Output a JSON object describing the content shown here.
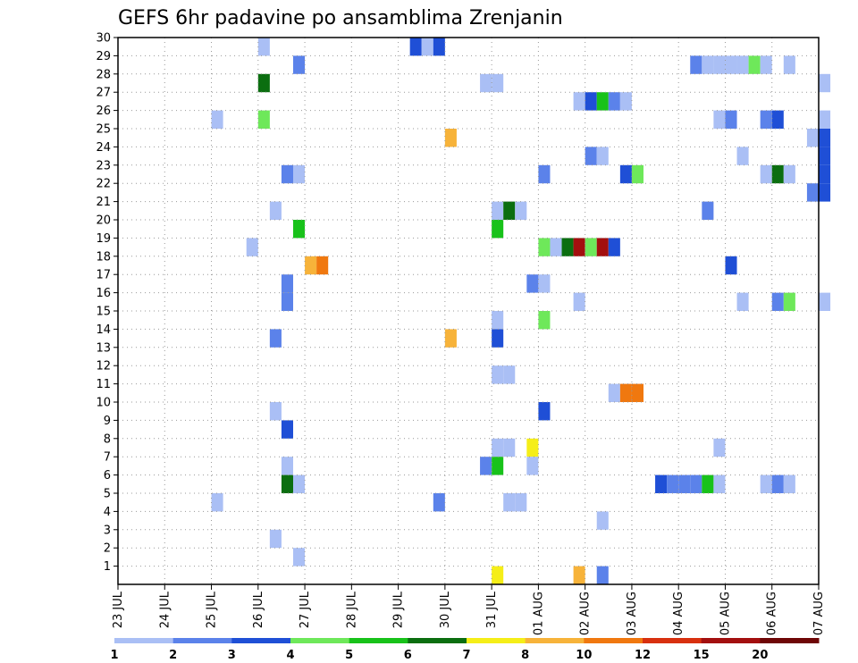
{
  "chart_data": {
    "type": "heatmap",
    "title": "GEFS 6hr padavine po ansamblima Zrenjanin",
    "xlabel": "",
    "ylabel": "",
    "x_tick_labels": [
      "23 JUL",
      "24 JUL",
      "25 JUL",
      "26 JUL",
      "27 JUL",
      "28 JUL",
      "29 JUL",
      "30 JUL",
      "31 JUL",
      "01 AUG",
      "02 AUG",
      "03 AUG",
      "04 AUG",
      "05 AUG",
      "06 AUG",
      "07 AUG"
    ],
    "x_range_steps": [
      0,
      60
    ],
    "steps_per_day": 4,
    "y_tick_labels": [
      "1",
      "2",
      "3",
      "4",
      "5",
      "6",
      "7",
      "8",
      "9",
      "10",
      "11",
      "12",
      "13",
      "14",
      "15",
      "16",
      "17",
      "18",
      "19",
      "20",
      "21",
      "22",
      "23",
      "24",
      "25",
      "26",
      "27",
      "28",
      "29",
      "30"
    ],
    "y_range": [
      0,
      30
    ],
    "grid": true,
    "colorbar": {
      "labels": [
        "1",
        "2",
        "3",
        "4",
        "5",
        "6",
        "7",
        "8",
        "10",
        "12",
        "15",
        "20"
      ],
      "colors": [
        "#aabff5",
        "#5b82ea",
        "#1f4fd6",
        "#6ee85a",
        "#18c21a",
        "#0b6e10",
        "#f5ee18",
        "#f7b33a",
        "#f0780f",
        "#d8300f",
        "#a30f0f",
        "#6e0606"
      ]
    },
    "cells": [
      [
        12,
        30,
        0
      ],
      [
        25,
        30,
        2
      ],
      [
        26,
        30,
        0
      ],
      [
        27,
        30,
        2
      ],
      [
        15,
        29,
        1
      ],
      [
        49,
        29,
        1
      ],
      [
        50,
        29,
        0
      ],
      [
        51,
        29,
        0
      ],
      [
        52,
        29,
        0
      ],
      [
        53,
        29,
        0
      ],
      [
        54,
        29,
        3
      ],
      [
        55,
        29,
        0
      ],
      [
        57,
        29,
        0
      ],
      [
        12,
        28,
        5
      ],
      [
        31,
        28,
        0
      ],
      [
        32,
        28,
        0
      ],
      [
        60,
        28,
        0
      ],
      [
        39,
        27,
        0
      ],
      [
        40,
        27,
        2
      ],
      [
        41,
        27,
        4
      ],
      [
        42,
        27,
        1
      ],
      [
        43,
        27,
        0
      ],
      [
        8,
        26,
        0
      ],
      [
        12,
        26,
        3
      ],
      [
        51,
        26,
        0
      ],
      [
        52,
        26,
        1
      ],
      [
        55,
        26,
        1
      ],
      [
        56,
        26,
        2
      ],
      [
        60,
        26,
        0
      ],
      [
        28,
        25,
        7
      ],
      [
        59,
        25,
        0
      ],
      [
        60,
        25,
        2
      ],
      [
        40,
        24,
        1
      ],
      [
        41,
        24,
        0
      ],
      [
        53,
        24,
        0
      ],
      [
        60,
        24,
        2
      ],
      [
        14,
        23,
        1
      ],
      [
        15,
        23,
        0
      ],
      [
        36,
        23,
        1
      ],
      [
        43,
        23,
        2
      ],
      [
        44,
        23,
        3
      ],
      [
        55,
        23,
        0
      ],
      [
        56,
        23,
        5
      ],
      [
        57,
        23,
        0
      ],
      [
        60,
        23,
        2
      ],
      [
        59,
        22,
        1
      ],
      [
        60,
        22,
        2
      ],
      [
        13,
        21,
        0
      ],
      [
        32,
        21,
        0
      ],
      [
        33,
        21,
        5
      ],
      [
        34,
        21,
        0
      ],
      [
        50,
        21,
        1
      ],
      [
        15,
        20,
        4
      ],
      [
        32,
        20,
        4
      ],
      [
        11,
        19,
        0
      ],
      [
        36,
        19,
        3
      ],
      [
        37,
        19,
        0
      ],
      [
        38,
        19,
        5
      ],
      [
        39,
        19,
        10
      ],
      [
        40,
        19,
        3
      ],
      [
        41,
        19,
        10
      ],
      [
        42,
        19,
        2
      ],
      [
        16,
        18,
        7
      ],
      [
        17,
        18,
        8
      ],
      [
        52,
        18,
        2
      ],
      [
        14,
        17,
        1
      ],
      [
        35,
        17,
        1
      ],
      [
        36,
        17,
        0
      ],
      [
        14,
        16,
        1
      ],
      [
        39,
        16,
        0
      ],
      [
        53,
        16,
        0
      ],
      [
        56,
        16,
        1
      ],
      [
        57,
        16,
        3
      ],
      [
        60,
        16,
        0
      ],
      [
        32,
        15,
        0
      ],
      [
        36,
        15,
        3
      ],
      [
        13,
        14,
        1
      ],
      [
        28,
        14,
        7
      ],
      [
        32,
        14,
        2
      ],
      [
        32,
        12,
        0
      ],
      [
        33,
        12,
        0
      ],
      [
        42,
        11,
        0
      ],
      [
        43,
        11,
        8
      ],
      [
        44,
        11,
        8
      ],
      [
        13,
        10,
        0
      ],
      [
        36,
        10,
        2
      ],
      [
        14,
        9,
        2
      ],
      [
        32,
        8,
        0
      ],
      [
        33,
        8,
        0
      ],
      [
        35,
        8,
        6
      ],
      [
        51,
        8,
        0
      ],
      [
        14,
        7,
        0
      ],
      [
        31,
        7,
        1
      ],
      [
        32,
        7,
        4
      ],
      [
        35,
        7,
        0
      ],
      [
        14,
        6,
        5
      ],
      [
        15,
        6,
        0
      ],
      [
        46,
        6,
        2
      ],
      [
        47,
        6,
        1
      ],
      [
        48,
        6,
        1
      ],
      [
        49,
        6,
        1
      ],
      [
        50,
        6,
        4
      ],
      [
        51,
        6,
        0
      ],
      [
        55,
        6,
        0
      ],
      [
        56,
        6,
        1
      ],
      [
        57,
        6,
        0
      ],
      [
        8,
        5,
        0
      ],
      [
        27,
        5,
        1
      ],
      [
        33,
        5,
        0
      ],
      [
        34,
        5,
        0
      ],
      [
        41,
        4,
        0
      ],
      [
        13,
        3,
        0
      ],
      [
        15,
        2,
        0
      ],
      [
        32,
        1,
        6
      ],
      [
        39,
        1,
        7
      ],
      [
        41,
        1,
        1
      ]
    ]
  }
}
